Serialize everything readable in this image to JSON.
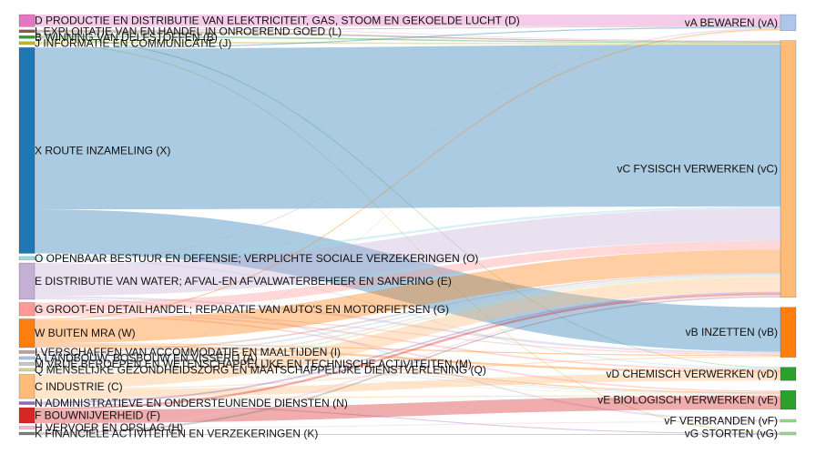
{
  "chart_data": {
    "type": "sankey",
    "title": "",
    "sources": [
      {
        "id": "D",
        "label": "D PRODUCTIE EN DISTRIBUTIE VAN ELEKTRICITEIT, GAS, STOOM EN GEKOELDE LUCHT (D)",
        "value": 11,
        "color": "#e377c2"
      },
      {
        "id": "L",
        "label": "L EXPLOITATIE VAN EN HANDEL IN ONROEREND GOED (L)",
        "value": 1.5,
        "color": "#8c564b"
      },
      {
        "id": "B",
        "label": "B WINNING VAN DELFSTOFFEN (B)",
        "value": 1.5,
        "color": "#2ca02c"
      },
      {
        "id": "J",
        "label": "J INFORMATIE EN COMMUNICATIE (J)",
        "value": 1.5,
        "color": "#bcbd22"
      },
      {
        "id": "X",
        "label": "X ROUTE INZAMELING (X)",
        "value": 187,
        "color": "#1f77b4"
      },
      {
        "id": "O",
        "label": "O OPENBAAR BESTUUR EN DEFENSIE; VERPLICHTE SOCIALE VERZEKERINGEN (O)",
        "value": 3,
        "color": "#9edae5"
      },
      {
        "id": "E",
        "label": "E DISTRIBUTIE VAN WATER; AFVAL-EN AFVALWATERBEHEER EN SANERING (E)",
        "value": 33,
        "color": "#c5b0d5"
      },
      {
        "id": "G",
        "label": "G GROOT-EN DETAILHANDEL; REPARATIE VAN AUTO'S EN MOTORFIETSEN (G)",
        "value": 12,
        "color": "#ff9896"
      },
      {
        "id": "W",
        "label": "W BUITEN MRA (W)",
        "value": 26,
        "color": "#ff7f0e"
      },
      {
        "id": "I",
        "label": "I VERSCHAFFEN VAN ACCOMMODATIE EN MAALTIJDEN (I)",
        "value": 1.5,
        "color": "#c49c94"
      },
      {
        "id": "A",
        "label": "A LANDBOUW, BOSBOUW EN VISSERIJ (A)",
        "value": 1.5,
        "color": "#aec7e8"
      },
      {
        "id": "M",
        "label": "M VRIJE BEROEPEN EN WETENSCHAPPELIJKE EN TECHNISCHE ACTIVITEITEN (M)",
        "value": 1.5,
        "color": "#c7c7c7"
      },
      {
        "id": "Q",
        "label": "Q MENSELIJKE GEZONDHEIDSZORG EN MAATSCHAPPELIJKE DIENSTVERLENING (Q)",
        "value": 1.5,
        "color": "#dbdb8d"
      },
      {
        "id": "C",
        "label": "C INDUSTRIE (C)",
        "value": 22,
        "color": "#ffbb78"
      },
      {
        "id": "N",
        "label": "N ADMINISTRATIEVE EN ONDERSTEUNENDE DIENSTEN (N)",
        "value": 1.5,
        "color": "#9467bd"
      },
      {
        "id": "F",
        "label": "F BOUWNIJVERHEID (F)",
        "value": 14,
        "color": "#d62728"
      },
      {
        "id": "H",
        "label": "H VERVOER EN OPSLAG (H)",
        "value": 1.5,
        "color": "#f7b6d2"
      },
      {
        "id": "K",
        "label": "K FINANCIELE ACTIVITEITEN EN VERZEKERINGEN (K)",
        "value": 1.5,
        "color": "#7f7f7f"
      }
    ],
    "targets": [
      {
        "id": "vA",
        "label": "vA BEWAREN (vA)",
        "color": "#aec7e8"
      },
      {
        "id": "vC",
        "label": "vC FYSISCH VERWERKEN (vC)",
        "color": "#ffbb78"
      },
      {
        "id": "vB",
        "label": "vB INZETTEN (vB)",
        "color": "#ff7f0e"
      },
      {
        "id": "vD",
        "label": "vD CHEMISCH VERWERKEN (vD)",
        "color": "#2ca02c"
      },
      {
        "id": "vE",
        "label": "vE BIOLOGISCH VERWERKEN (vE)",
        "color": "#2ca02c"
      },
      {
        "id": "vF",
        "label": "vF VERBRANDEN (vF)",
        "color": "#98df8a"
      },
      {
        "id": "vG",
        "label": "vG STORTEN (vG)",
        "color": "#98df8a"
      }
    ],
    "links": [
      {
        "source": "D",
        "target": "vA",
        "value": 10.5
      },
      {
        "source": "D",
        "target": "vC",
        "value": 0.5
      },
      {
        "source": "L",
        "target": "vA",
        "value": 0.5
      },
      {
        "source": "L",
        "target": "vC",
        "value": 1
      },
      {
        "source": "B",
        "target": "vC",
        "value": 1
      },
      {
        "source": "B",
        "target": "vD",
        "value": 0.5
      },
      {
        "source": "J",
        "target": "vC",
        "value": 1
      },
      {
        "source": "J",
        "target": "vG",
        "value": 0.5
      },
      {
        "source": "X",
        "target": "vA",
        "value": 1
      },
      {
        "source": "X",
        "target": "vC",
        "value": 146
      },
      {
        "source": "X",
        "target": "vB",
        "value": 40
      },
      {
        "source": "O",
        "target": "vC",
        "value": 2
      },
      {
        "source": "O",
        "target": "vD",
        "value": 1
      },
      {
        "source": "E",
        "target": "vA",
        "value": 1
      },
      {
        "source": "E",
        "target": "vC",
        "value": 29
      },
      {
        "source": "E",
        "target": "vB",
        "value": 2
      },
      {
        "source": "E",
        "target": "vF",
        "value": 1
      },
      {
        "source": "G",
        "target": "vC",
        "value": 8
      },
      {
        "source": "G",
        "target": "vB",
        "value": 1
      },
      {
        "source": "G",
        "target": "vD",
        "value": 1.5
      },
      {
        "source": "G",
        "target": "vE",
        "value": 1.5
      },
      {
        "source": "W",
        "target": "vA",
        "value": 1
      },
      {
        "source": "W",
        "target": "vC",
        "value": 21
      },
      {
        "source": "W",
        "target": "vB",
        "value": 1
      },
      {
        "source": "W",
        "target": "vD",
        "value": 2
      },
      {
        "source": "W",
        "target": "vE",
        "value": 1
      },
      {
        "source": "I",
        "target": "vC",
        "value": 1
      },
      {
        "source": "I",
        "target": "vE",
        "value": 0.5
      },
      {
        "source": "A",
        "target": "vC",
        "value": 1
      },
      {
        "source": "A",
        "target": "vE",
        "value": 0.5
      },
      {
        "source": "M",
        "target": "vA",
        "value": 0.5
      },
      {
        "source": "M",
        "target": "vC",
        "value": 1
      },
      {
        "source": "Q",
        "target": "vC",
        "value": 1
      },
      {
        "source": "Q",
        "target": "vE",
        "value": 0.5
      },
      {
        "source": "C",
        "target": "vC",
        "value": 13
      },
      {
        "source": "C",
        "target": "vB",
        "value": 1
      },
      {
        "source": "C",
        "target": "vD",
        "value": 7
      },
      {
        "source": "C",
        "target": "vE",
        "value": 1
      },
      {
        "source": "N",
        "target": "vC",
        "value": 1
      },
      {
        "source": "N",
        "target": "vG",
        "value": 0.5
      },
      {
        "source": "F",
        "target": "vC",
        "value": 2
      },
      {
        "source": "F",
        "target": "vE",
        "value": 12
      },
      {
        "source": "H",
        "target": "vC",
        "value": 1
      },
      {
        "source": "H",
        "target": "vF",
        "value": 0.5
      },
      {
        "source": "K",
        "target": "vC",
        "value": 1
      },
      {
        "source": "K",
        "target": "vG",
        "value": 0.5
      }
    ]
  }
}
